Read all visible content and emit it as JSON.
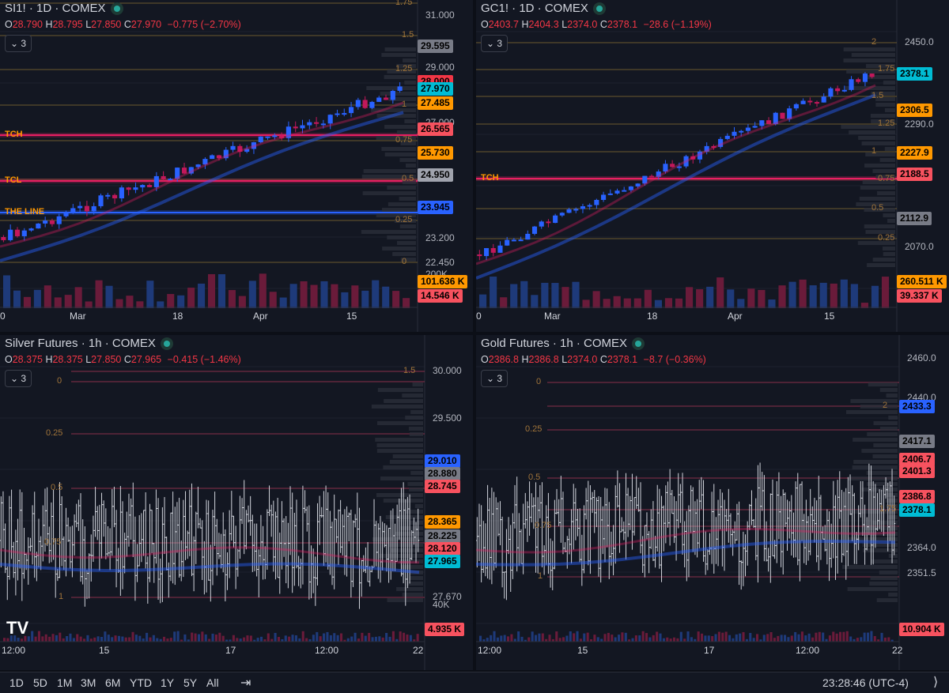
{
  "panes": [
    {
      "id": "si-daily",
      "title": "SI1! · 1D · COMEX",
      "ohlc": {
        "o": "O",
        "ov": "28.790",
        "h": "H",
        "hv": "28.795",
        "l": "L",
        "lv": "27.850",
        "c": "C",
        "cv": "27.970",
        "chg": "−0.775 (−2.70%)"
      },
      "indicator_count": "3",
      "price_axis": [
        "31.000",
        "29.000",
        "27.000",
        "23.200",
        "22.450",
        "200K"
      ],
      "badges": [
        {
          "text": "29.595",
          "color": "#787b86"
        },
        {
          "text": "28.000",
          "color": "#f23645"
        },
        {
          "text": "27.970",
          "color": "#00bcd4"
        },
        {
          "text": "27.485",
          "color": "#ff9800"
        },
        {
          "text": "26.565",
          "color": "#f7525f"
        },
        {
          "text": "25.730",
          "color": "#ff9800"
        },
        {
          "text": "24.950",
          "color": "#a0a3ad"
        },
        {
          "text": "23.945",
          "color": "#2962ff"
        },
        {
          "text": "101.636 K",
          "color": "#ff9800"
        },
        {
          "text": "14.546 K",
          "color": "#f7525f"
        }
      ],
      "levels": [
        "TCH",
        "TCL",
        "THE LINE"
      ],
      "fibs": [
        "1.75",
        "1.5",
        "1.25",
        "1",
        "0.75",
        "0.5",
        "0.25",
        "0"
      ],
      "time_axis": [
        "0",
        "Mar",
        "18",
        "Apr",
        "15"
      ]
    },
    {
      "id": "gc-daily",
      "title": "GC1! · 1D · COMEX",
      "ohlc": {
        "o": "O",
        "ov": "2403.7",
        "h": "H",
        "hv": "2404.3",
        "l": "L",
        "lv": "2374.0",
        "c": "C",
        "cv": "2378.1",
        "chg": "−28.6 (−1.19%)"
      },
      "indicator_count": "3",
      "price_axis": [
        "2450.0",
        "2290.0",
        "2070.0"
      ],
      "badges": [
        {
          "text": "2378.1",
          "color": "#00bcd4"
        },
        {
          "text": "2306.5",
          "color": "#ff9800"
        },
        {
          "text": "2227.9",
          "color": "#ff9800"
        },
        {
          "text": "2188.5",
          "color": "#f7525f"
        },
        {
          "text": "2112.9",
          "color": "#787b86"
        },
        {
          "text": "260.511 K",
          "color": "#ff9800"
        },
        {
          "text": "39.337 K",
          "color": "#f7525f"
        }
      ],
      "levels": [
        "TCH"
      ],
      "fibs": [
        "2",
        "1.75",
        "1.5",
        "1.25",
        "1",
        "0.75",
        "0.5",
        "0.25"
      ],
      "time_axis": [
        "0",
        "Mar",
        "18",
        "Apr",
        "15"
      ]
    },
    {
      "id": "si-hourly",
      "title": "Silver Futures · 1h · COMEX",
      "ohlc": {
        "o": "O",
        "ov": "28.375",
        "h": "H",
        "hv": "28.375",
        "l": "L",
        "lv": "27.850",
        "c": "C",
        "cv": "27.965",
        "chg": "−0.415 (−1.46%)"
      },
      "indicator_count": "3",
      "price_axis": [
        "30.000",
        "29.500",
        "27.670",
        "40K"
      ],
      "badges": [
        {
          "text": "29.010",
          "color": "#2962ff"
        },
        {
          "text": "28.880",
          "color": "#787b86"
        },
        {
          "text": "28.745",
          "color": "#f7525f"
        },
        {
          "text": "28.365",
          "color": "#ff9800"
        },
        {
          "text": "28.225",
          "color": "#787b86"
        },
        {
          "text": "28.120",
          "color": "#f7525f"
        },
        {
          "text": "27.965",
          "color": "#00bcd4"
        },
        {
          "text": "4.935 K",
          "color": "#f7525f"
        }
      ],
      "fibs": [
        "0",
        "0.25",
        "0.5",
        "0.75",
        "1",
        "1.5"
      ],
      "time_axis": [
        "12:00",
        "15",
        "17",
        "12:00",
        "22"
      ]
    },
    {
      "id": "gc-hourly",
      "title": "Gold Futures · 1h · COMEX",
      "ohlc": {
        "o": "O",
        "ov": "2386.8",
        "h": "H",
        "hv": "2386.8",
        "l": "L",
        "lv": "2374.0",
        "c": "C",
        "cv": "2378.1",
        "chg": "−8.7 (−0.36%)"
      },
      "indicator_count": "3",
      "price_axis": [
        "2460.0",
        "2440.0",
        "2364.0",
        "2351.5"
      ],
      "badges": [
        {
          "text": "2433.3",
          "color": "#2962ff"
        },
        {
          "text": "2417.1",
          "color": "#787b86"
        },
        {
          "text": "2406.7",
          "color": "#f7525f"
        },
        {
          "text": "2401.3",
          "color": "#f7525f"
        },
        {
          "text": "2386.8",
          "color": "#f7525f"
        },
        {
          "text": "2378.1",
          "color": "#00bcd4"
        },
        {
          "text": "10.904 K",
          "color": "#f7525f"
        }
      ],
      "fibs": [
        "0",
        "0.25",
        "0.5",
        "0.75",
        "1",
        "1.75",
        "2"
      ],
      "time_axis": [
        "12:00",
        "15",
        "17",
        "12:00",
        "22"
      ]
    }
  ],
  "bottom_bar": {
    "ranges": [
      "1D",
      "5D",
      "1M",
      "3M",
      "6M",
      "YTD",
      "1Y",
      "5Y",
      "All"
    ],
    "clock": "23:28:46 (UTC-4)"
  },
  "logo": "TV"
}
